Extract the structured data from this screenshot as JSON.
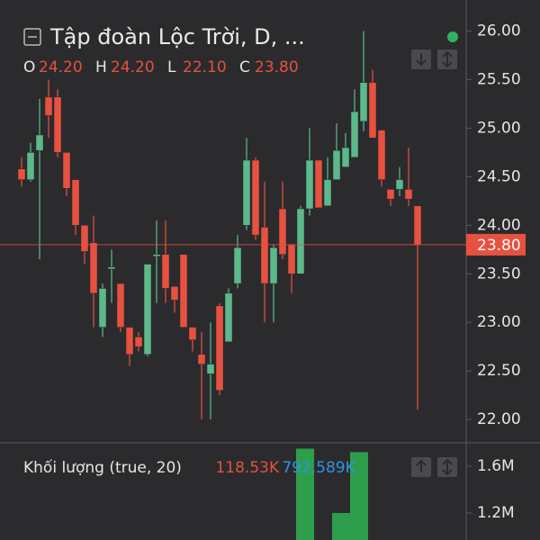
{
  "header": {
    "title": "Tập đoàn Lộc Trời, D, ...",
    "ohlc": [
      {
        "key": "O",
        "value": "24.20"
      },
      {
        "key": "H",
        "value": "24.20"
      },
      {
        "key": "L",
        "value": "22.10"
      },
      {
        "key": "C",
        "value": "23.80"
      }
    ]
  },
  "chart_data": [
    {
      "type": "candlestick",
      "open": [
        24.58,
        24.47,
        24.77,
        25.32,
        25.32,
        24.75,
        24.47,
        24.0,
        23.82,
        22.95,
        23.55,
        23.4,
        22.95,
        22.85,
        22.67,
        23.68,
        23.7,
        23.37,
        23.7,
        22.95,
        22.67,
        22.47,
        23.17,
        22.8,
        23.4,
        24.0,
        24.67,
        23.98,
        23.4,
        24.17,
        23.8,
        23.5,
        24.17,
        24.67,
        24.2,
        24.47,
        24.6,
        24.7,
        25.07,
        25.47,
        24.98,
        24.37,
        24.37,
        24.37,
        24.2
      ],
      "high": [
        24.7,
        24.85,
        25.3,
        25.5,
        25.4,
        24.75,
        24.47,
        24.0,
        24.1,
        23.4,
        23.75,
        23.4,
        22.95,
        22.9,
        23.6,
        24.05,
        24.05,
        23.37,
        23.7,
        22.95,
        22.9,
        23.0,
        23.2,
        23.35,
        23.9,
        24.9,
        24.7,
        24.45,
        23.8,
        24.45,
        23.8,
        24.2,
        25.0,
        24.67,
        24.7,
        25.05,
        24.95,
        25.4,
        26.0,
        25.6,
        24.98,
        24.37,
        24.6,
        24.8,
        24.2
      ],
      "low": [
        24.4,
        24.45,
        23.65,
        24.9,
        24.7,
        24.3,
        23.9,
        23.6,
        22.95,
        22.85,
        23.2,
        22.9,
        22.55,
        22.7,
        22.65,
        23.2,
        23.2,
        23.1,
        22.95,
        22.7,
        22.0,
        22.0,
        22.25,
        22.8,
        23.35,
        23.95,
        23.85,
        23.0,
        23.0,
        23.65,
        23.3,
        23.5,
        24.1,
        24.18,
        24.2,
        24.47,
        24.6,
        24.7,
        24.97,
        24.9,
        24.4,
        24.2,
        24.3,
        24.2,
        22.1
      ],
      "close": [
        24.47,
        24.75,
        24.93,
        25.13,
        24.75,
        24.38,
        24.0,
        23.73,
        23.3,
        23.35,
        23.57,
        22.95,
        22.67,
        22.75,
        23.6,
        23.7,
        23.35,
        23.23,
        22.95,
        22.82,
        22.57,
        22.57,
        22.3,
        23.3,
        23.77,
        24.67,
        23.9,
        23.4,
        23.77,
        23.7,
        23.5,
        24.17,
        24.67,
        24.18,
        24.47,
        24.77,
        24.8,
        25.17,
        25.47,
        24.9,
        24.47,
        24.27,
        24.47,
        24.27,
        23.8
      ],
      "up_color": "#5cb98a",
      "down_color": "#e8513f",
      "ylim": [
        21.76,
        26.32
      ],
      "yticks": [
        {
          "value": 22,
          "label": "22.00"
        },
        {
          "value": 22.5,
          "label": "22.50"
        },
        {
          "value": 23,
          "label": "23.00"
        },
        {
          "value": 23.5,
          "label": "23.50"
        },
        {
          "value": 24,
          "label": "24.00"
        },
        {
          "value": 24.5,
          "label": "24.50"
        },
        {
          "value": 25,
          "label": "25.00"
        },
        {
          "value": 25.5,
          "label": "25.50"
        },
        {
          "value": 26,
          "label": "26.00"
        }
      ],
      "last_price": {
        "value": 23.8,
        "label": "23.80"
      },
      "grid": false
    },
    {
      "type": "bar",
      "title": "Khối lượng (true, 20)",
      "readouts": [
        {
          "label": "118.53K",
          "color": "#e8513f"
        },
        {
          "label": "792.589K",
          "color": "#2f93e6"
        }
      ],
      "values": [
        null,
        null,
        null,
        null,
        null,
        null,
        null,
        null,
        null,
        null,
        null,
        null,
        null,
        null,
        null,
        null,
        null,
        null,
        null,
        null,
        null,
        null,
        null,
        null,
        null,
        null,
        null,
        null,
        null,
        null,
        null,
        1750000,
        1750000,
        null,
        null,
        1200000,
        1200000,
        1720000,
        1720000,
        null,
        null,
        null,
        null,
        null,
        null
      ],
      "color": "#2e9e4c",
      "ylim": [
        1000000,
        1800000
      ],
      "yticks": [
        {
          "value": 1200000,
          "label": "1.2M"
        },
        {
          "value": 1600000,
          "label": "1.6M"
        }
      ]
    }
  ]
}
